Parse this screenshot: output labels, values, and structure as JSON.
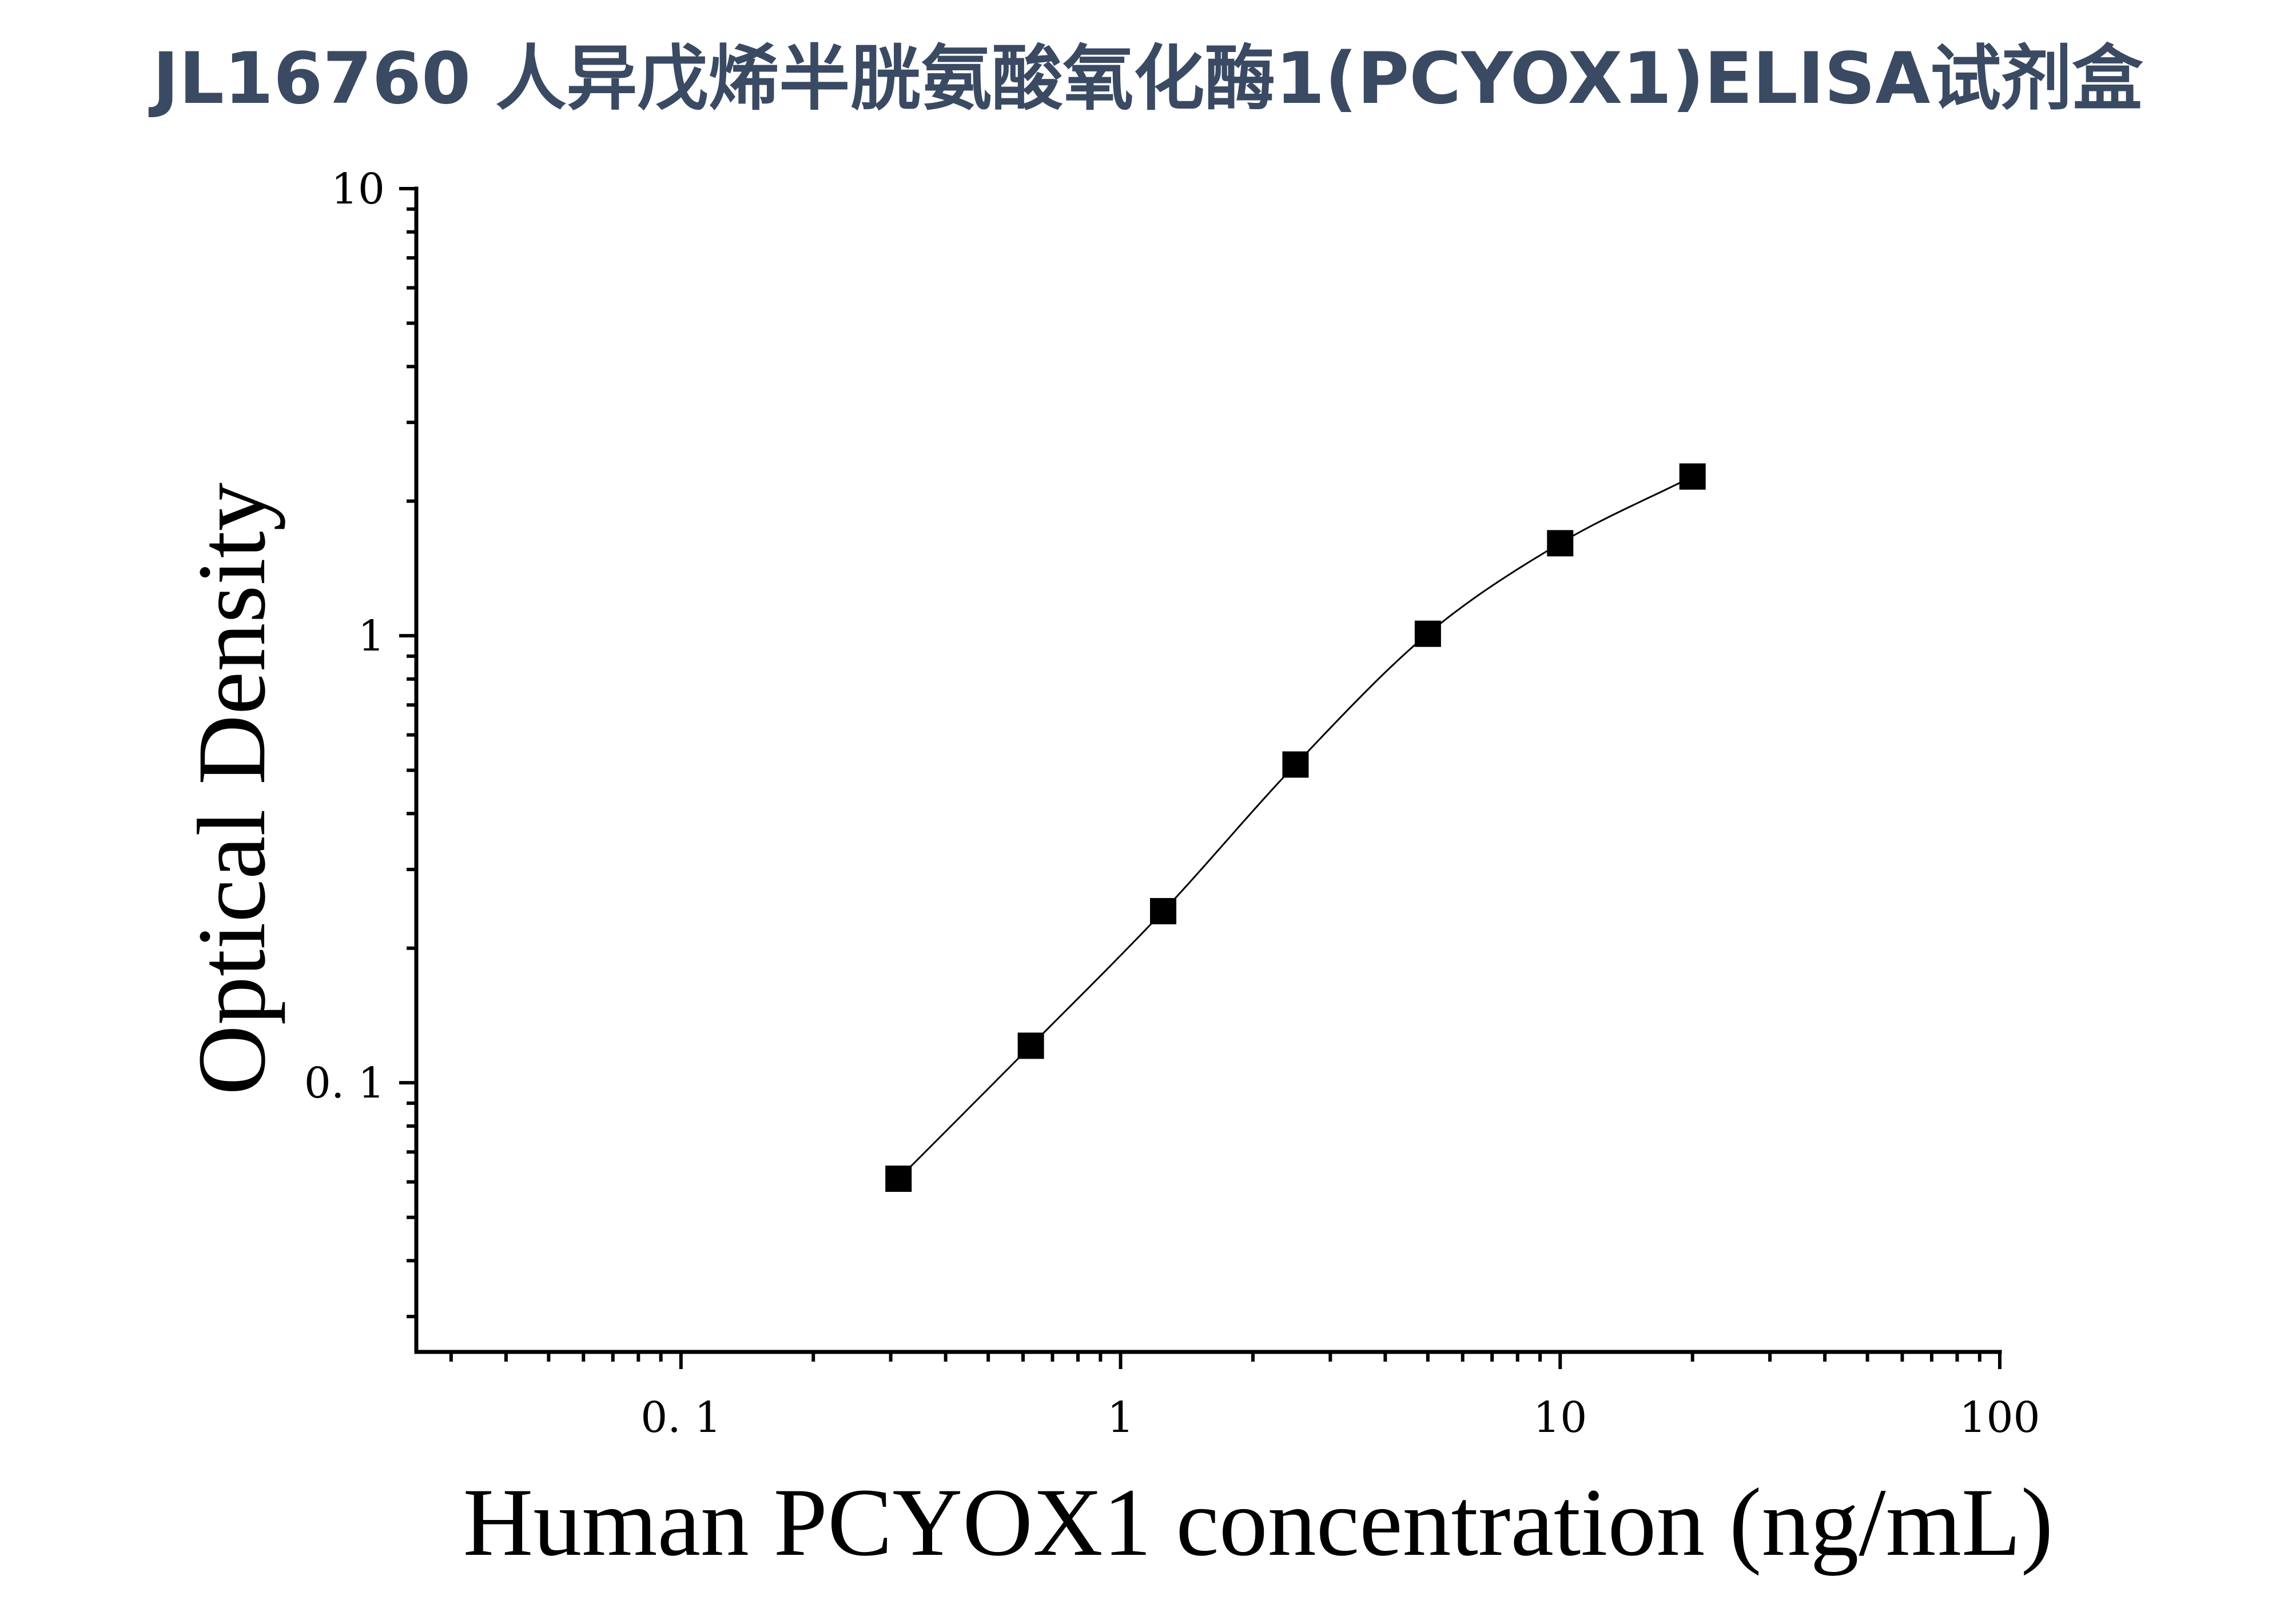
{
  "chart_data": {
    "type": "scatter",
    "title": "JL16760 人异戊烯半胱氨酸氧化酶1(PCYOX1)ELISA试剂盒",
    "xlabel": "Human PCYOX1 concentration (ng/mL)",
    "ylabel": "Optical Density",
    "x_scale": "log",
    "y_scale": "log",
    "xlim": [
      0.025,
      100
    ],
    "ylim": [
      0.025,
      10
    ],
    "x_ticks": [
      {
        "value": 0.1,
        "label": "0. 1"
      },
      {
        "value": 1,
        "label": "1"
      },
      {
        "value": 10,
        "label": "10"
      },
      {
        "value": 100,
        "label": "100"
      }
    ],
    "y_ticks": [
      {
        "value": 0.1,
        "label": "0. 1"
      },
      {
        "value": 1,
        "label": "1"
      },
      {
        "value": 10,
        "label": "10"
      }
    ],
    "grid": false,
    "marker": "square",
    "fit_line": true,
    "series": [
      {
        "x": [
          0.3125,
          0.625,
          1.25,
          2.5,
          5,
          10,
          20
        ],
        "y": [
          0.061,
          0.121,
          0.242,
          0.515,
          1.01,
          1.61,
          2.27
        ]
      }
    ],
    "colors": {
      "title": "#3b4a63",
      "marks": "#000000"
    }
  }
}
